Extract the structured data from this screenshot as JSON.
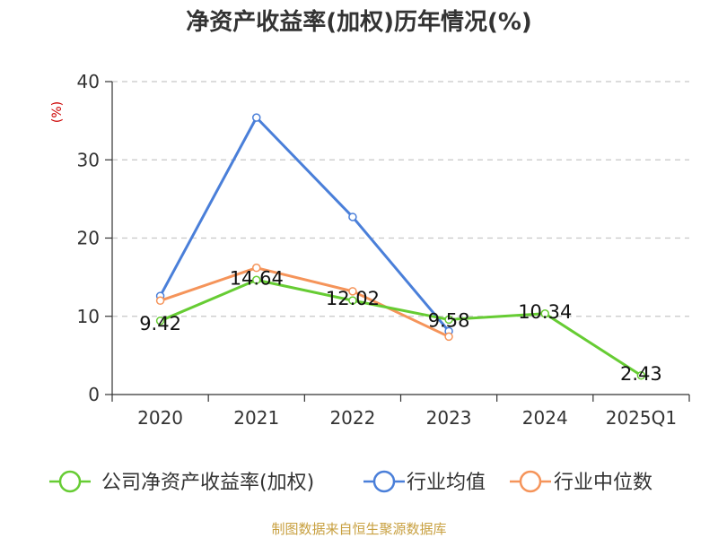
{
  "title": "净资产收益率(加权)历年情况(%)",
  "source_note": "制图数据来自恒生聚源数据库",
  "chart_data": {
    "type": "line",
    "title": "净资产收益率(加权)历年情况(%)",
    "ylabel": "(%)",
    "xlabel": "",
    "categories": [
      "2020",
      "2021",
      "2022",
      "2023",
      "2024",
      "2025Q1"
    ],
    "y_ticks": [
      "0",
      "10",
      "20",
      "30",
      "40"
    ],
    "ylim": [
      0,
      40
    ],
    "grid": true,
    "legend_position": "bottom",
    "series": [
      {
        "name": "公司净资产收益率(加权)",
        "color": "#66cc33",
        "values": [
          9.42,
          14.64,
          12.02,
          9.58,
          10.34,
          2.43
        ],
        "labels": [
          "9.42",
          "14.64",
          "12.02",
          "9.58",
          "10.34",
          "2.43"
        ]
      },
      {
        "name": "行业均值",
        "color": "#4a7fd9",
        "values": [
          12.6,
          35.4,
          22.7,
          8.1,
          null,
          null
        ]
      },
      {
        "name": "行业中位数",
        "color": "#f5945a",
        "values": [
          12.0,
          16.2,
          13.2,
          7.4,
          null,
          null
        ]
      }
    ]
  }
}
